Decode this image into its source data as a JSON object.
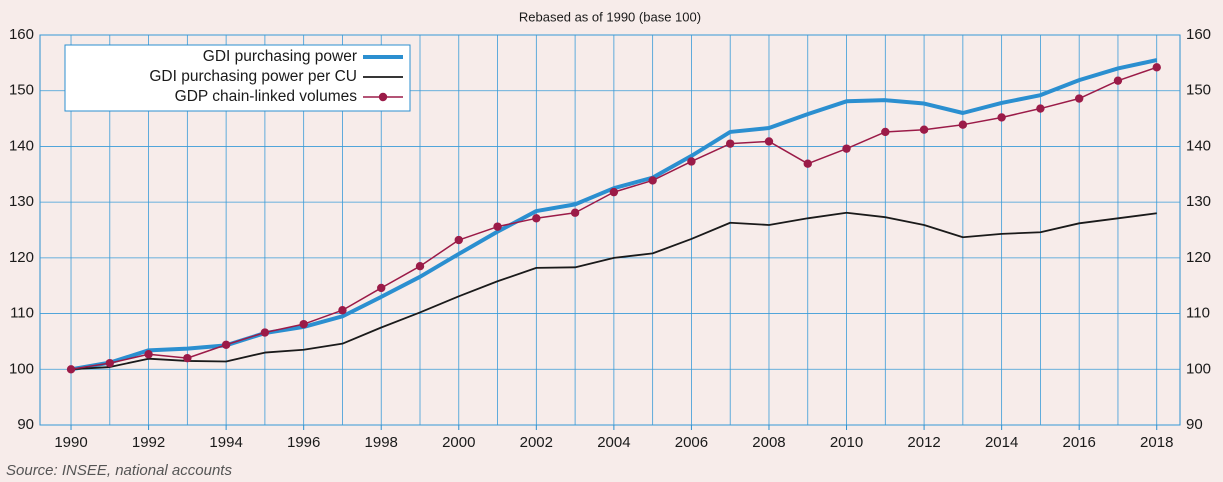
{
  "chart_data": {
    "type": "line",
    "title": "Rebased as of 1990 (base 100)",
    "source": "Source: INSEE, national accounts",
    "x": [
      1990,
      1991,
      1992,
      1993,
      1994,
      1995,
      1996,
      1997,
      1998,
      1999,
      2000,
      2001,
      2002,
      2003,
      2004,
      2005,
      2006,
      2007,
      2008,
      2009,
      2010,
      2011,
      2012,
      2013,
      2014,
      2015,
      2016,
      2017,
      2018
    ],
    "series": [
      {
        "name": "GDI purchasing power",
        "color": "#2b8fd0",
        "width": 4,
        "markers": false,
        "values": [
          100,
          101.2,
          103.4,
          103.7,
          104.3,
          106.5,
          107.6,
          109.5,
          113,
          116.6,
          120.7,
          124.7,
          128.4,
          129.6,
          132.5,
          134.4,
          138.3,
          142.6,
          143.3,
          145.8,
          148.1,
          148.3,
          147.7,
          146,
          147.8,
          149.2,
          151.9,
          154,
          155.5
        ]
      },
      {
        "name": "GDI purchasing power per CU",
        "color": "#1a1a1a",
        "width": 1.8,
        "markers": false,
        "values": [
          100,
          100.4,
          101.9,
          101.5,
          101.4,
          103,
          103.5,
          104.6,
          107.5,
          110.2,
          113.1,
          115.8,
          118.2,
          118.3,
          120,
          120.8,
          123.4,
          126.3,
          125.9,
          127.1,
          128.1,
          127.3,
          125.9,
          123.7,
          124.3,
          124.6,
          126.2,
          127.1,
          128
        ]
      },
      {
        "name": "GDP chain-linked volumes",
        "color": "#9b1b48",
        "width": 1.5,
        "markers": true,
        "values": [
          100,
          101.1,
          102.7,
          102,
          104.4,
          106.6,
          108.1,
          110.6,
          114.6,
          118.5,
          123.2,
          125.6,
          127.1,
          128.1,
          131.8,
          133.9,
          137.3,
          140.5,
          140.9,
          136.9,
          139.6,
          142.6,
          143,
          143.9,
          145.2,
          146.8,
          148.6,
          151.8,
          154.2
        ]
      }
    ],
    "xlim": [
      1989.2,
      2018.6
    ],
    "xticks": [
      1990,
      1992,
      1994,
      1996,
      1998,
      2000,
      2002,
      2004,
      2006,
      2008,
      2010,
      2012,
      2014,
      2016,
      2018
    ],
    "ylim": [
      90,
      160
    ],
    "yticks": [
      90,
      100,
      110,
      120,
      130,
      140,
      150,
      160
    ],
    "y2lim": [
      90,
      160
    ],
    "y2ticks": [
      90,
      100,
      110,
      120,
      130,
      140,
      150,
      160
    ],
    "grid": true,
    "legend": "upper left"
  }
}
